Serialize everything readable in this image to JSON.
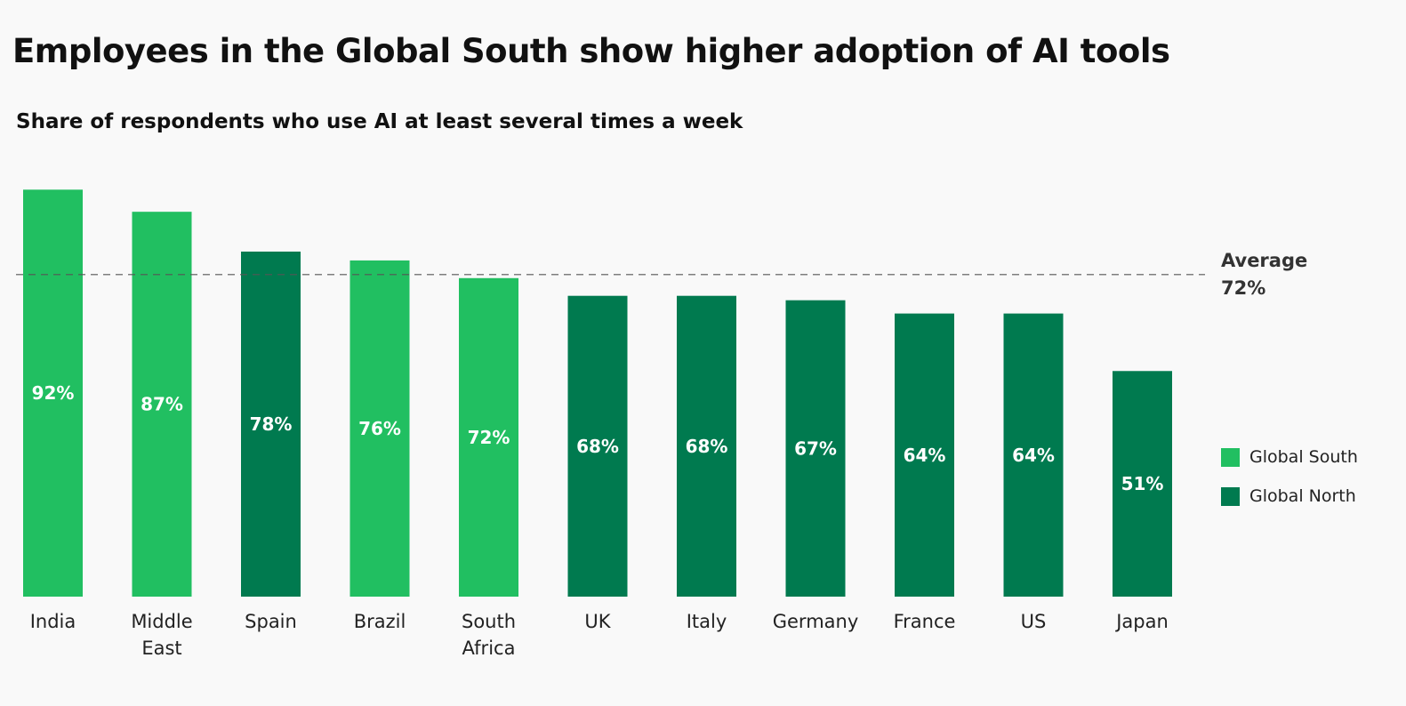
{
  "title": "Employees in the Global South show higher adoption of AI tools",
  "subtitle": "Share of respondents who use AI at least several times a week",
  "colors": {
    "global_south": "#21bf61",
    "global_north": "#007a4f",
    "background": "#f9f9f9"
  },
  "chart_data": {
    "type": "bar",
    "title": "Employees in the Global South show higher adoption of AI tools",
    "subtitle": "Share of respondents who use AI at least several times a week",
    "categories": [
      "India",
      "Middle East",
      "Spain",
      "Brazil",
      "South Africa",
      "UK",
      "Italy",
      "Germany",
      "France",
      "US",
      "Japan"
    ],
    "values": [
      92,
      87,
      78,
      76,
      72,
      68,
      68,
      67,
      64,
      64,
      51
    ],
    "data_labels": [
      "92%",
      "87%",
      "78%",
      "76%",
      "72%",
      "68%",
      "68%",
      "67%",
      "64%",
      "64%",
      "51%"
    ],
    "groups": [
      "Global South",
      "Global South",
      "Global North",
      "Global South",
      "Global South",
      "Global North",
      "Global North",
      "Global North",
      "Global North",
      "Global North",
      "Global North"
    ],
    "ylim": [
      0,
      100
    ],
    "grid": false,
    "y_axis_shown": false,
    "average": {
      "label": "Average",
      "value": 72,
      "value_label": "72%"
    },
    "legend": {
      "placement": "right",
      "entries": [
        "Global South",
        "Global North"
      ]
    }
  }
}
